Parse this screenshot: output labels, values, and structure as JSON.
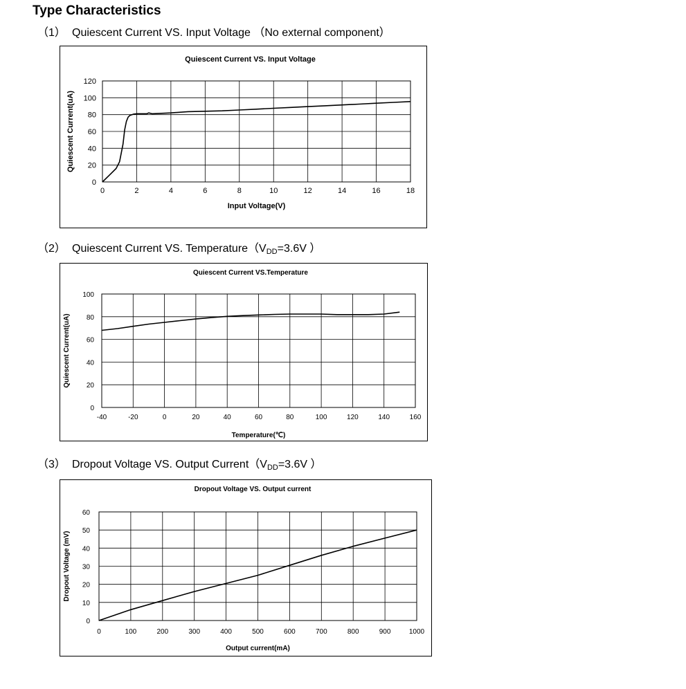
{
  "page_title": "Type Characteristics",
  "sections": [
    {
      "number": "（1）",
      "title": "Quiescent Current VS. Input Voltage （No external component）"
    },
    {
      "number": "（2）",
      "title_pre": "Quiescent Current VS. Temperature（V",
      "title_sub": "DD",
      "title_post": "=3.6V ）"
    },
    {
      "number": "（3）",
      "title_pre": "Dropout Voltage VS. Output Current（V",
      "title_sub": "DD",
      "title_post": "=3.6V ）"
    }
  ],
  "chart_data": [
    {
      "type": "line",
      "title": "Quiescent Current VS. Input Voltage",
      "xlabel": "Input Voltage(V)",
      "ylabel": "Quiescent Current(uA)",
      "xlim": [
        0,
        18
      ],
      "ylim": [
        0,
        120
      ],
      "xticks": [
        "0",
        "2",
        "4",
        "6",
        "8",
        "10",
        "12",
        "14",
        "16",
        "18"
      ],
      "yticks": [
        "0",
        "20",
        "40",
        "60",
        "80",
        "100",
        "120"
      ],
      "grid": true,
      "series": [
        {
          "x": [
            0,
            0.4,
            0.8,
            1.0,
            1.2,
            1.3,
            1.4,
            1.5,
            1.6,
            1.8,
            2.0,
            2.6,
            2.7,
            2.9,
            4,
            5,
            6,
            7,
            8,
            9,
            10,
            11,
            12,
            13,
            14,
            15,
            16,
            17,
            18
          ],
          "y": [
            0,
            8,
            16,
            24,
            45,
            62,
            72,
            77,
            79,
            80.5,
            81,
            81,
            82,
            81,
            82,
            83.5,
            84,
            84.5,
            85.5,
            86.5,
            87.5,
            88.5,
            89.5,
            90.5,
            91.5,
            92.5,
            93.5,
            94.5,
            95.5
          ]
        }
      ]
    },
    {
      "type": "line",
      "title": "Quiescent Current VS.Temperature",
      "xlabel": "Temperature(℃)",
      "ylabel": "Quiescent Current(uA)",
      "xlim": [
        -40,
        160
      ],
      "ylim": [
        0,
        100
      ],
      "xticks": [
        "-40",
        "-20",
        "0",
        "20",
        "40",
        "60",
        "80",
        "100",
        "120",
        "140",
        "160"
      ],
      "yticks": [
        "0",
        "20",
        "40",
        "60",
        "80",
        "100"
      ],
      "grid": true,
      "series": [
        {
          "x": [
            -40,
            -30,
            -20,
            -10,
            0,
            10,
            20,
            30,
            40,
            50,
            60,
            70,
            80,
            90,
            100,
            110,
            120,
            130,
            140,
            150
          ],
          "y": [
            68,
            69.5,
            71.5,
            73.5,
            75,
            76.5,
            78,
            79.2,
            80.3,
            81,
            81.5,
            82,
            82.3,
            82.3,
            82.3,
            81.8,
            81.8,
            81.8,
            82.3,
            84
          ]
        }
      ]
    },
    {
      "type": "line",
      "title": "Dropout Voltage VS. Output current",
      "xlabel": "Output current(mA)",
      "ylabel": "Dropout Voltage (mV)",
      "xlim": [
        0,
        1000
      ],
      "ylim": [
        0,
        60
      ],
      "xticks": [
        "0",
        "100",
        "200",
        "300",
        "400",
        "500",
        "600",
        "700",
        "800",
        "900",
        "1000"
      ],
      "yticks": [
        "0",
        "10",
        "20",
        "30",
        "40",
        "50",
        "60"
      ],
      "grid": true,
      "series": [
        {
          "x": [
            0,
            100,
            200,
            300,
            400,
            500,
            600,
            700,
            800,
            900,
            1000
          ],
          "y": [
            0,
            6,
            11,
            16,
            20.5,
            25,
            30.5,
            36,
            41,
            45.5,
            50
          ]
        }
      ]
    }
  ]
}
